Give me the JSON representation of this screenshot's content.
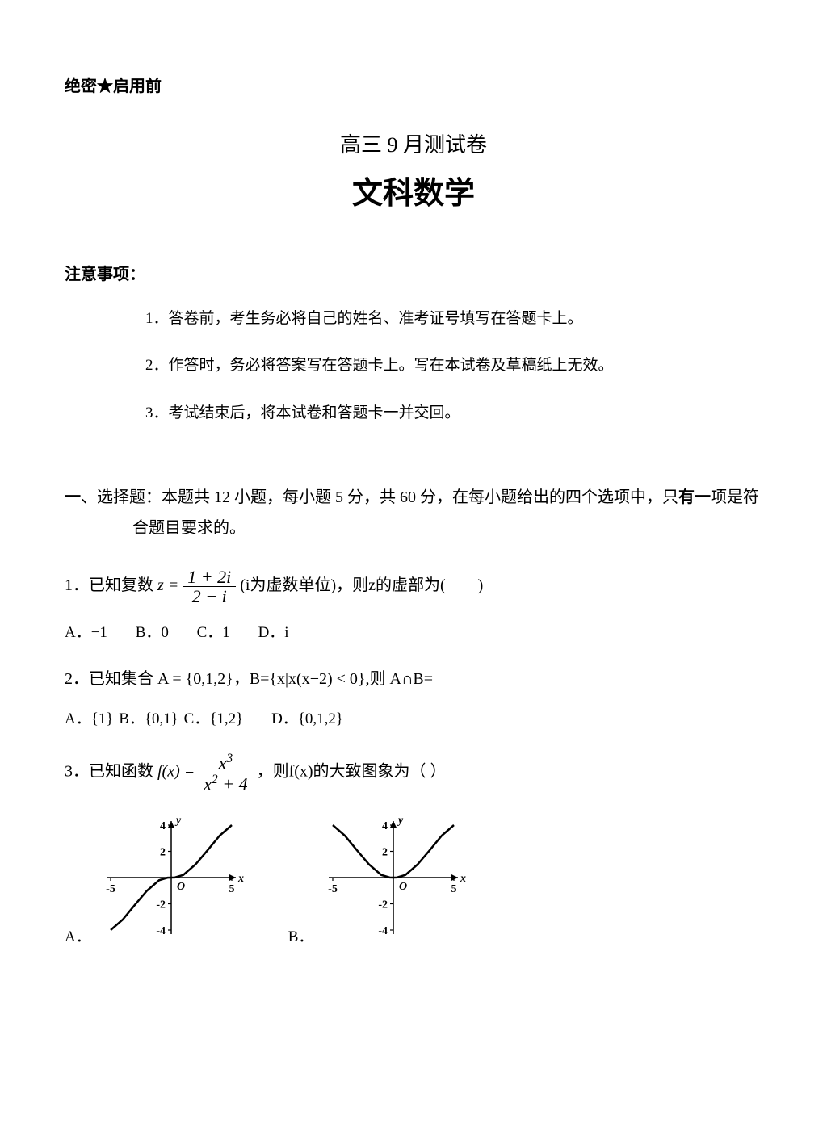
{
  "header": {
    "secret": "绝密★启用前",
    "subtitle": "高三 9 月测试卷",
    "main_title": "文科数学"
  },
  "notice": {
    "head": "注意事项：",
    "items": [
      "1．答卷前，考生务必将自己的姓名、准考证号填写在答题卡上。",
      "2．作答时，务必将答案写在答题卡上。写在本试卷及草稿纸上无效。",
      "3．考试结束后，将本试卷和答题卡一并交回。"
    ]
  },
  "section": {
    "prefix": "一",
    "title_full": "、选择题：本题共 12 小题，每小题 5 分，共 60 分，在每小题给出的四个选项中，只",
    "title_tail_bold": "有一",
    "title_tail": "项是符合题目要求的。"
  },
  "q1": {
    "pre": "1．已知复数",
    "var": "z = ",
    "frac_num": "1 + 2i",
    "frac_den": "2 − i",
    "mid": " (i为虚数单位)，则z的虚部为(　　)",
    "opts": {
      "A": "A．−1",
      "B": "B．0",
      "C": "C．1",
      "D": "D．i"
    }
  },
  "q2": {
    "text": "2．已知集合 A = {0,1,2}，B={x|x(x−2) < 0},则 A∩B=",
    "opts": {
      "A": "A．{1}",
      "B": "B．{0,1}",
      "C": "C．{1,2}",
      "D": "D．{0,1,2}"
    }
  },
  "q3": {
    "pre": "3．已知函数",
    "var": "f(x) = ",
    "frac_num": "x",
    "frac_num_exp": "3",
    "frac_den": "x",
    "frac_den_exp": "2",
    "frac_den_tail": " + 4",
    "post": "，则f(x)的大致图象为（ ）",
    "opt_labels": {
      "A": "A．",
      "B": "B．"
    }
  },
  "chart": {
    "type": "cartesian-line",
    "width": 190,
    "height": 170,
    "background_color": "#ffffff",
    "axis_color": "#000000",
    "line_color": "#000000",
    "tick_color": "#000000",
    "label_fontsize": 14,
    "line_width": 2.5,
    "xlim": [
      -5,
      5
    ],
    "ylim": [
      -4,
      4
    ],
    "xticks": [
      -5,
      5
    ],
    "yticks": [
      -4,
      -2,
      2,
      4
    ],
    "xlabel": "x",
    "ylabel": "y",
    "origin_label": "O",
    "A_curve": [
      [
        -5,
        -4
      ],
      [
        -4,
        -3.2
      ],
      [
        -3,
        -2.08
      ],
      [
        -2,
        -1.0
      ],
      [
        -1,
        -0.2
      ],
      [
        -0.3,
        -0.01
      ],
      [
        0,
        0
      ],
      [
        0.3,
        0.01
      ],
      [
        1,
        0.2
      ],
      [
        2,
        1.0
      ],
      [
        3,
        2.08
      ],
      [
        4,
        3.2
      ],
      [
        5,
        4
      ]
    ],
    "B_curve": [
      [
        -5,
        4
      ],
      [
        -4,
        3.2
      ],
      [
        -3,
        2.08
      ],
      [
        -2,
        1.0
      ],
      [
        -1,
        0.2
      ],
      [
        -0.3,
        0.01
      ],
      [
        0,
        0
      ],
      [
        0.3,
        0.01
      ],
      [
        1,
        0.2
      ],
      [
        2,
        1.0
      ],
      [
        3,
        2.08
      ],
      [
        4,
        3.2
      ],
      [
        5,
        4
      ]
    ]
  }
}
